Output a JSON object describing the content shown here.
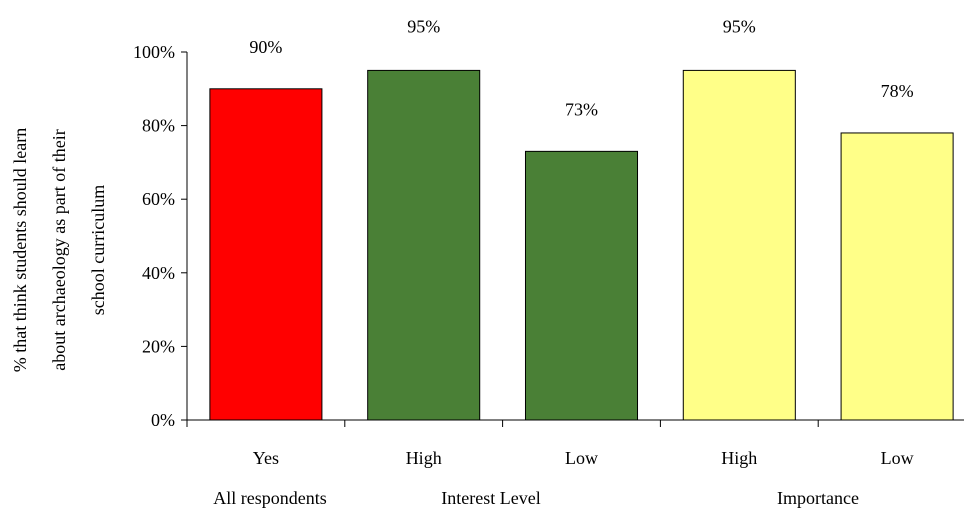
{
  "chart_data": {
    "type": "bar",
    "title": "",
    "ylabel": "% that think students should learn about archaeology as part of their school curriculum",
    "ylabel_lines": [
      "% that think students should learn",
      "about archaeology as part of their",
      "school curriculum"
    ],
    "ylim": [
      0,
      100
    ],
    "y_ticks": [
      "0%",
      "20%",
      "40%",
      "60%",
      "80%",
      "100%"
    ],
    "grid": false,
    "legend": "none",
    "categories": [
      "Yes",
      "High",
      "Low",
      "High",
      "Low"
    ],
    "values": [
      90,
      95,
      73,
      95,
      78
    ],
    "data_labels": [
      "90%",
      "95%",
      "73%",
      "95%",
      "78%"
    ],
    "bar_colors": [
      "#ff0000",
      "#4a8036",
      "#4a8036",
      "#ffff88",
      "#ffff88"
    ],
    "groups": [
      {
        "label": "All respondents",
        "members": [
          0
        ]
      },
      {
        "label": "Interest Level",
        "members": [
          1,
          2
        ]
      },
      {
        "label": "Importance",
        "members": [
          3,
          4
        ]
      }
    ]
  }
}
